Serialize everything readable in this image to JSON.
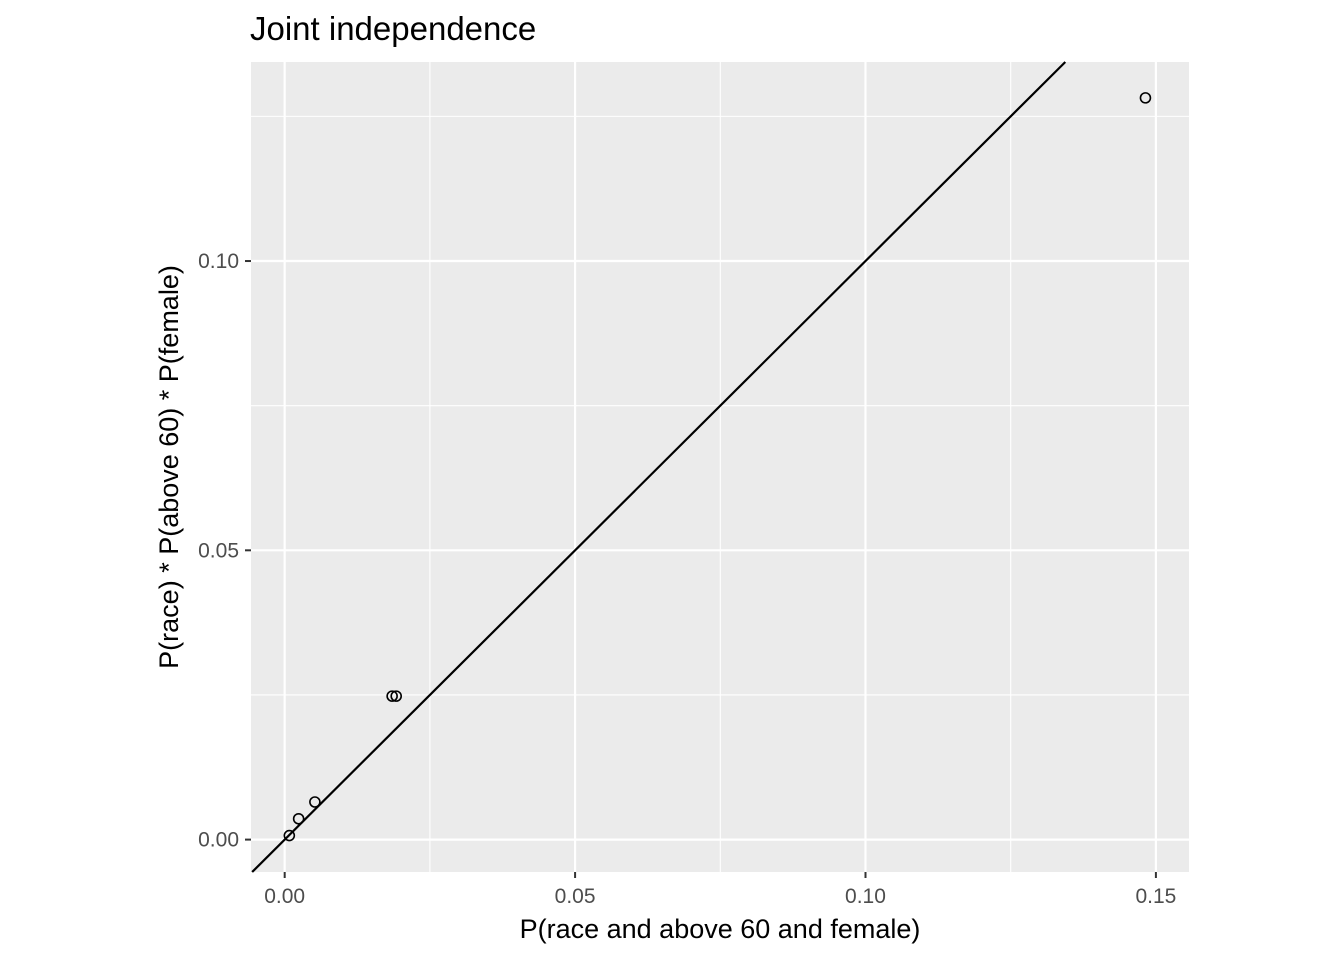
{
  "chart_data": {
    "type": "scatter",
    "title": "Joint independence",
    "xlabel": "P(race and above 60 and female)",
    "ylabel": "P(race) * P(above 60) * P(female)",
    "xlim": [
      -0.0058,
      0.1557
    ],
    "ylim": [
      -0.0056,
      0.1344
    ],
    "x_ticks": [
      {
        "value": 0.0,
        "label": "0.00"
      },
      {
        "value": 0.05,
        "label": "0.05"
      },
      {
        "value": 0.1,
        "label": "0.10"
      },
      {
        "value": 0.15,
        "label": "0.15"
      }
    ],
    "y_ticks": [
      {
        "value": 0.0,
        "label": "0.00"
      },
      {
        "value": 0.05,
        "label": "0.05"
      },
      {
        "value": 0.1,
        "label": "0.10"
      }
    ],
    "x_minor_breaks": [
      0.025,
      0.075,
      0.125
    ],
    "y_minor_breaks": [
      0.025,
      0.075,
      0.125
    ],
    "grid": true,
    "panel_background": "#ebebeb",
    "grid_color": "#ffffff",
    "reference_line": {
      "intercept": 0,
      "slope": 1,
      "color": "#000000"
    },
    "point_style": {
      "shape": "open-circle",
      "stroke": "#000000"
    },
    "points": [
      {
        "x": 0.0008,
        "y": 0.0007
      },
      {
        "x": 0.0024,
        "y": 0.0036
      },
      {
        "x": 0.0052,
        "y": 0.0065
      },
      {
        "x": 0.0185,
        "y": 0.0248
      },
      {
        "x": 0.0192,
        "y": 0.0248
      },
      {
        "x": 0.1482,
        "y": 0.1282
      }
    ]
  }
}
